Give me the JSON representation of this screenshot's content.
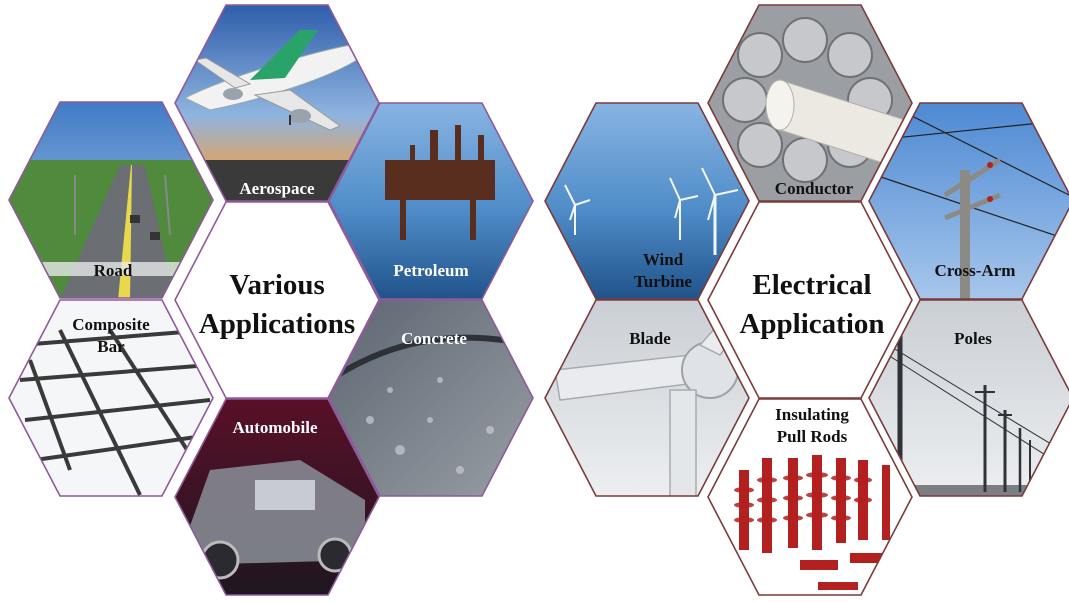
{
  "left_cluster": {
    "center_title_line1": "Various",
    "center_title_line2": "Applications",
    "tiles": {
      "aerospace": "Aerospace",
      "road": "Road",
      "petroleum": "Petroleum",
      "composite_line1": "Composite",
      "composite_line2": "Bar",
      "concrete": "Concrete",
      "automobile": "Automobile"
    }
  },
  "right_cluster": {
    "center_title_line1": "Electrical",
    "center_title_line2": "Application",
    "tiles": {
      "conductor": "Conductor",
      "wind_line1": "Wind",
      "wind_line2": "Turbine",
      "crossarm": "Cross-Arm",
      "blade": "Blade",
      "poles": "Poles",
      "rods_line1": "Insulating",
      "rods_line2": "Pull Rods"
    }
  },
  "colors": {
    "left_border": "#8e5a9a",
    "right_border": "#7a3b3b",
    "sky": "#6fa3d8",
    "sea": "#2f6fa8",
    "insulator_red": "#b32020"
  }
}
